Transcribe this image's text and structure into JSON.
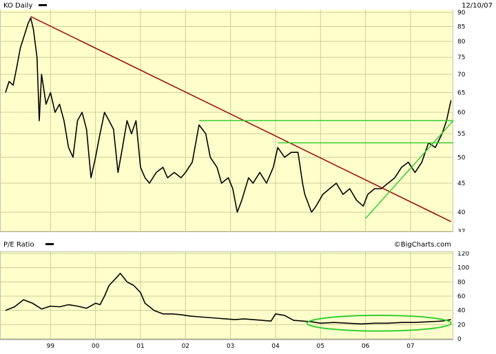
{
  "header": {
    "title": "KO Daily",
    "date": "12/10/07",
    "watermark": "©BigCharts.com"
  },
  "colors": {
    "background": "#ffffcc",
    "price": "#000000",
    "downtrend": "#990000",
    "uptrend": "#33cc33",
    "grid": "#cccc99"
  },
  "chart_data": [
    {
      "type": "line",
      "title": "KO Daily",
      "yscale": "log",
      "ylim": [
        37,
        90
      ],
      "yticks": [
        37,
        40,
        45,
        50,
        55,
        60,
        65,
        70,
        75,
        80,
        85,
        90
      ],
      "xticks": [
        "99",
        "00",
        "01",
        "02",
        "03",
        "04",
        "05",
        "06",
        "07"
      ],
      "xlim": [
        1998.0,
        2007.95
      ],
      "series": [
        {
          "x": [
            1998.0,
            1998.08,
            1998.17,
            1998.25,
            1998.33,
            1998.42,
            1998.5,
            1998.56,
            1998.62,
            1998.7,
            1998.75,
            1998.8,
            1998.85,
            1998.9,
            1999.0,
            1999.1,
            1999.2,
            1999.3,
            1999.4,
            1999.5,
            1999.6,
            1999.7,
            1999.8,
            1999.9,
            2000.0,
            2000.1,
            2000.2,
            2000.3,
            2000.4,
            2000.5,
            2000.6,
            2000.7,
            2000.8,
            2000.9,
            2001.0,
            2001.1,
            2001.2,
            2001.35,
            2001.5,
            2001.6,
            2001.75,
            2001.9,
            2002.0,
            2002.15,
            2002.3,
            2002.45,
            2002.55,
            2002.7,
            2002.8,
            2002.95,
            2003.05,
            2003.15,
            2003.25,
            2003.4,
            2003.5,
            2003.65,
            2003.8,
            2003.95,
            2004.05,
            2004.2,
            2004.35,
            2004.5,
            2004.6,
            2004.65,
            2004.8,
            2004.9,
            2005.05,
            2005.2,
            2005.35,
            2005.5,
            2005.65,
            2005.8,
            2005.95,
            2006.05,
            2006.2,
            2006.35,
            2006.5,
            2006.65,
            2006.8,
            2006.95,
            2007.1,
            2007.25,
            2007.4,
            2007.55,
            2007.7,
            2007.8,
            2007.9
          ],
          "y": [
            65,
            68,
            67,
            72,
            78,
            82,
            86,
            88,
            84,
            75,
            58,
            70,
            66,
            62,
            65,
            60,
            62,
            58,
            52,
            50,
            58,
            60,
            56,
            46,
            50,
            55,
            60,
            58,
            56,
            47,
            52,
            58,
            55,
            58,
            48,
            46,
            45,
            47,
            48,
            46,
            47,
            46,
            47,
            49,
            57,
            55,
            50,
            48,
            45,
            46,
            44,
            40,
            42,
            46,
            45,
            47,
            45,
            48,
            52,
            50,
            51,
            51,
            45,
            43,
            40,
            41,
            43,
            44,
            45,
            43,
            44,
            42,
            41,
            43,
            44,
            44,
            45,
            46,
            48,
            49,
            47,
            49,
            53,
            52,
            55,
            58,
            63
          ]
        }
      ]
    },
    {
      "type": "line",
      "title": "P/E Ratio",
      "ylim": [
        0,
        120
      ],
      "yticks": [
        0,
        20,
        40,
        60,
        80,
        100,
        120
      ],
      "xticks": [
        "99",
        "00",
        "01",
        "02",
        "03",
        "04",
        "05",
        "06",
        "07"
      ],
      "xlim": [
        1998.0,
        2007.95
      ],
      "series": [
        {
          "x": [
            1998.0,
            1998.2,
            1998.4,
            1998.6,
            1998.8,
            1999.0,
            1999.2,
            1999.4,
            1999.6,
            1999.8,
            2000.0,
            2000.1,
            2000.2,
            2000.3,
            2000.45,
            2000.55,
            2000.7,
            2000.85,
            2001.0,
            2001.1,
            2001.3,
            2001.5,
            2001.7,
            2001.9,
            2002.1,
            2002.3,
            2002.5,
            2002.7,
            2002.9,
            2003.1,
            2003.3,
            2003.5,
            2003.7,
            2003.9,
            2004.0,
            2004.2,
            2004.4,
            2004.6,
            2004.8,
            2005.0,
            2005.3,
            2005.6,
            2005.9,
            2006.2,
            2006.5,
            2006.8,
            2007.1,
            2007.4,
            2007.7,
            2007.9
          ],
          "y": [
            40,
            45,
            55,
            50,
            42,
            46,
            45,
            48,
            46,
            43,
            50,
            48,
            60,
            75,
            85,
            92,
            80,
            75,
            65,
            50,
            40,
            35,
            35,
            34,
            32,
            31,
            30,
            29,
            28,
            27,
            28,
            27,
            26,
            25,
            35,
            33,
            26,
            25,
            24,
            22,
            23,
            22,
            21,
            22,
            22,
            23,
            23,
            24,
            25,
            27
          ]
        }
      ]
    }
  ],
  "trendlines": {
    "downtrend": {
      "start": [
        1998.56,
        88.5
      ],
      "end": [
        2007.9,
        38.5
      ]
    },
    "uptrend": {
      "start": [
        2006.0,
        39.0
      ],
      "end": [
        2007.95,
        58.0
      ]
    },
    "resistance_upper": {
      "start": [
        2002.3,
        58.0
      ],
      "end": [
        2007.95,
        58.0
      ]
    },
    "resistance_lower": {
      "start": [
        2004.05,
        53.0
      ],
      "end": [
        2007.95,
        53.0
      ]
    },
    "pe_ellipse": {
      "center": [
        2006.3,
        22
      ],
      "rx_years": 1.6,
      "ry_units": 11
    }
  }
}
